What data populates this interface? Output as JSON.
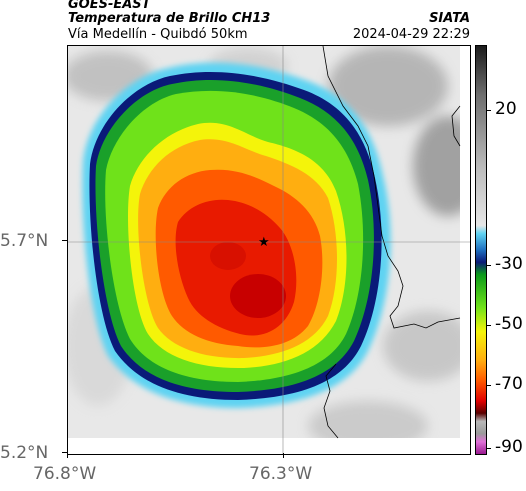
{
  "header": {
    "satellite": "GOES-EAST",
    "product": "Temperatura de Brillo CH13",
    "region": "Vía Medellín - Quibdó 50km",
    "agency": "SIATA",
    "datetime": "2024-04-29 22:29"
  },
  "axes": {
    "y_ticks": [
      "5.7°N",
      "5.2°N"
    ],
    "x_ticks": [
      "76.8°W",
      "76.3°W"
    ]
  },
  "colorbar": {
    "tick_labels": [
      "20",
      "-30",
      "-50",
      "-70",
      "-90"
    ],
    "stops": [
      {
        "color": "#1c1c1c"
      },
      {
        "color": "#6e6e6e"
      },
      {
        "color": "#bcbcbc"
      },
      {
        "color": "#e6e6e6"
      },
      {
        "color": "#5fd3f2"
      },
      {
        "color": "#1f6fc0"
      },
      {
        "color": "#0a1a78"
      },
      {
        "color": "#0a9a1a"
      },
      {
        "color": "#6fe21a"
      },
      {
        "color": "#f4f40a"
      },
      {
        "color": "#ffae10"
      },
      {
        "color": "#ff5a00"
      },
      {
        "color": "#e00000"
      },
      {
        "color": "#5a0000"
      },
      {
        "color": "#b8b8b8"
      },
      {
        "color": "#9a9a9a"
      },
      {
        "color": "#e070d8"
      },
      {
        "color": "#9a1a90"
      }
    ]
  },
  "markers": {
    "location": "star"
  }
}
